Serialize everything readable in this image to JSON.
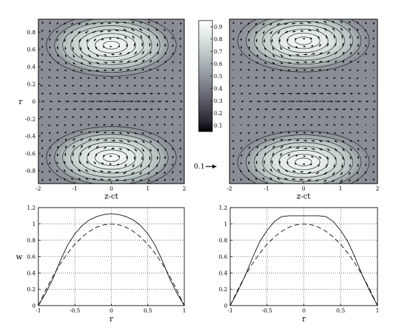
{
  "colorbar": {
    "ticks": [
      "0.9",
      "0.8",
      "0.7",
      "0.6",
      "0.5",
      "0.4",
      "0.3",
      "0.2",
      "0.1"
    ],
    "tick_values": [
      0.9,
      0.8,
      0.7,
      0.6,
      0.5,
      0.4,
      0.3,
      0.2,
      0.1
    ],
    "range": [
      0.05,
      0.95
    ]
  },
  "arrow_scale_label": "0.1",
  "chart_data": [
    {
      "type": "heatmap",
      "panel": "top-left",
      "xlabel": "z-ct",
      "ylabel": "r",
      "xlim": [
        -2,
        2
      ],
      "ylim": [
        -0.95,
        0.95
      ],
      "xticks": [
        "-2",
        "-1",
        "0",
        "1",
        "2"
      ],
      "xtick_values": [
        -2,
        -1,
        0,
        1,
        2
      ],
      "yticks": [
        "0.8",
        "0.6",
        "0.4",
        "0.2",
        "0",
        "-0.2",
        "-0.4",
        "-0.6",
        "-0.8"
      ],
      "ytick_values": [
        0.8,
        0.6,
        0.4,
        0.2,
        0,
        -0.2,
        -0.4,
        -0.6,
        -0.8
      ],
      "vortex_centers": [
        {
          "x": 0.0,
          "y": 0.65
        },
        {
          "x": 0.0,
          "y": -0.65
        }
      ],
      "contour_levels": [
        0.1,
        0.2,
        0.3,
        0.4,
        0.5,
        0.6,
        0.7,
        0.8
      ],
      "colors": {
        "background": "#8a8d94",
        "peak": "#f4f8f6"
      }
    },
    {
      "type": "heatmap",
      "panel": "top-right",
      "xlabel": "z-ct",
      "ylabel": "",
      "xlim": [
        -2,
        2
      ],
      "ylim": [
        -0.95,
        0.95
      ],
      "xticks": [
        "-2",
        "-1",
        "0",
        "1",
        "2"
      ],
      "xtick_values": [
        -2,
        -1,
        0,
        1,
        2
      ],
      "vortex_centers": [
        {
          "x": 0.0,
          "y": 0.7
        },
        {
          "x": 0.0,
          "y": -0.7
        }
      ],
      "contour_levels": [
        0.1,
        0.2,
        0.3,
        0.4,
        0.5,
        0.6,
        0.7,
        0.8
      ],
      "colors": {
        "background": "#8a8d94",
        "peak": "#f4f8f6"
      }
    },
    {
      "type": "line",
      "panel": "bottom-left",
      "xlabel": "r",
      "ylabel": "w",
      "xlim": [
        -1,
        1
      ],
      "ylim": [
        0,
        1.2
      ],
      "xticks": [
        "-1",
        "-0.5",
        "0",
        "0.5",
        "1"
      ],
      "xtick_values": [
        -1,
        -0.5,
        0,
        0.5,
        1
      ],
      "yticks": [
        "0",
        "0.2",
        "0.4",
        "0.6",
        "0.8",
        "1",
        "1.2"
      ],
      "ytick_values": [
        0,
        0.2,
        0.4,
        0.6,
        0.8,
        1,
        1.2
      ],
      "grid": true,
      "series": [
        {
          "style": "solid",
          "x": [
            -1,
            -0.9,
            -0.8,
            -0.7,
            -0.6,
            -0.5,
            -0.4,
            -0.3,
            -0.2,
            -0.1,
            0,
            0.1,
            0.2,
            0.3,
            0.4,
            0.5,
            0.6,
            0.7,
            0.8,
            0.9,
            1
          ],
          "y": [
            0.0,
            0.15,
            0.33,
            0.55,
            0.74,
            0.88,
            0.98,
            1.05,
            1.09,
            1.115,
            1.125,
            1.115,
            1.09,
            1.05,
            0.98,
            0.88,
            0.74,
            0.55,
            0.33,
            0.15,
            0.0
          ]
        },
        {
          "style": "dashed",
          "x": [
            -1,
            -0.9,
            -0.8,
            -0.7,
            -0.6,
            -0.5,
            -0.4,
            -0.3,
            -0.2,
            -0.1,
            0,
            0.1,
            0.2,
            0.3,
            0.4,
            0.5,
            0.6,
            0.7,
            0.8,
            0.9,
            1
          ],
          "y": [
            0.0,
            0.19,
            0.36,
            0.51,
            0.64,
            0.75,
            0.84,
            0.91,
            0.96,
            0.99,
            1.0,
            0.99,
            0.96,
            0.91,
            0.84,
            0.75,
            0.64,
            0.51,
            0.36,
            0.19,
            0.0
          ]
        }
      ]
    },
    {
      "type": "line",
      "panel": "bottom-right",
      "xlabel": "r",
      "ylabel": "",
      "xlim": [
        -1,
        1
      ],
      "ylim": [
        0,
        1.2
      ],
      "xticks": [
        "-1",
        "-0.5",
        "0",
        "0.5",
        "1"
      ],
      "xtick_values": [
        -1,
        -0.5,
        0,
        0.5,
        1
      ],
      "yticks": [
        "0",
        "0.2",
        "0.4",
        "0.6",
        "0.8",
        "1",
        "1.2"
      ],
      "ytick_values": [
        0,
        0.2,
        0.4,
        0.6,
        0.8,
        1,
        1.2
      ],
      "grid": true,
      "series": [
        {
          "style": "solid",
          "x": [
            -1,
            -0.9,
            -0.8,
            -0.7,
            -0.6,
            -0.5,
            -0.4,
            -0.3,
            -0.2,
            -0.1,
            0,
            0.1,
            0.2,
            0.3,
            0.4,
            0.5,
            0.6,
            0.7,
            0.8,
            0.9,
            1
          ],
          "y": [
            0.0,
            0.17,
            0.36,
            0.58,
            0.78,
            0.92,
            1.03,
            1.09,
            1.1,
            1.1,
            1.1,
            1.1,
            1.1,
            1.09,
            1.03,
            0.92,
            0.78,
            0.58,
            0.36,
            0.17,
            0.0
          ]
        },
        {
          "style": "dashed",
          "x": [
            -1,
            -0.9,
            -0.8,
            -0.7,
            -0.6,
            -0.5,
            -0.4,
            -0.3,
            -0.2,
            -0.1,
            0,
            0.1,
            0.2,
            0.3,
            0.4,
            0.5,
            0.6,
            0.7,
            0.8,
            0.9,
            1
          ],
          "y": [
            0.0,
            0.19,
            0.36,
            0.51,
            0.64,
            0.75,
            0.84,
            0.91,
            0.96,
            0.99,
            1.0,
            0.99,
            0.96,
            0.91,
            0.84,
            0.75,
            0.64,
            0.51,
            0.36,
            0.19,
            0.0
          ]
        }
      ]
    }
  ]
}
